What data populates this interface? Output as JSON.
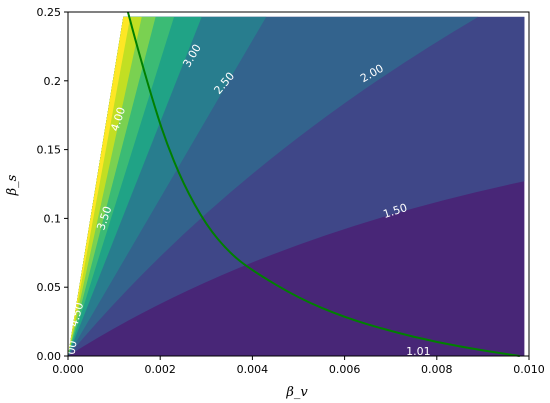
{
  "chart_data": {
    "type": "contourf",
    "xlabel": "β_v",
    "ylabel": "β_s",
    "xlim": [
      0,
      0.01
    ],
    "ylim": [
      0,
      0.25
    ],
    "x_ticks": [
      "0.000",
      "0.002",
      "0.004",
      "0.006",
      "0.008",
      "0.010"
    ],
    "y_ticks": [
      "0.00",
      "0.05",
      "0.1",
      "0.15",
      "0.2",
      "0.25"
    ],
    "colormap": "viridis",
    "levels": [
      1.01,
      1.5,
      2.0,
      2.5,
      3.0,
      3.5,
      4.0,
      4.5,
      5.0
    ],
    "level_colors": [
      "#482677",
      "#3f4788",
      "#33638d",
      "#287d8e",
      "#20a386",
      "#3bbb75",
      "#7ad151",
      "#c2df23",
      "#fde725"
    ],
    "contour_labels": [
      {
        "text": "1.01",
        "x": 0.0076,
        "y": 0.003
      },
      {
        "text": "1.50",
        "x": 0.0071,
        "y": 0.105
      },
      {
        "text": "2.00",
        "x": 0.0066,
        "y": 0.205
      },
      {
        "text": "2.50",
        "x": 0.0034,
        "y": 0.198
      },
      {
        "text": "3.00",
        "x": 0.0027,
        "y": 0.218
      },
      {
        "text": "3.50",
        "x": 0.0008,
        "y": 0.1
      },
      {
        "text": "4.00",
        "x": 0.0011,
        "y": 0.172
      },
      {
        "text": "4.50",
        "x": 0.0002,
        "y": 0.03
      },
      {
        "text": "00",
        "x": 0.0001,
        "y": 0.006
      }
    ],
    "curve": {
      "name": "",
      "color": "#008000",
      "x": [
        0.0013,
        0.0015,
        0.0018,
        0.0021,
        0.0025,
        0.003,
        0.0035,
        0.004,
        0.005,
        0.006,
        0.007,
        0.008,
        0.009,
        0.0098
      ],
      "y": [
        0.25,
        0.225,
        0.19,
        0.158,
        0.125,
        0.095,
        0.075,
        0.062,
        0.042,
        0.028,
        0.018,
        0.01,
        0.004,
        0.0
      ]
    }
  }
}
